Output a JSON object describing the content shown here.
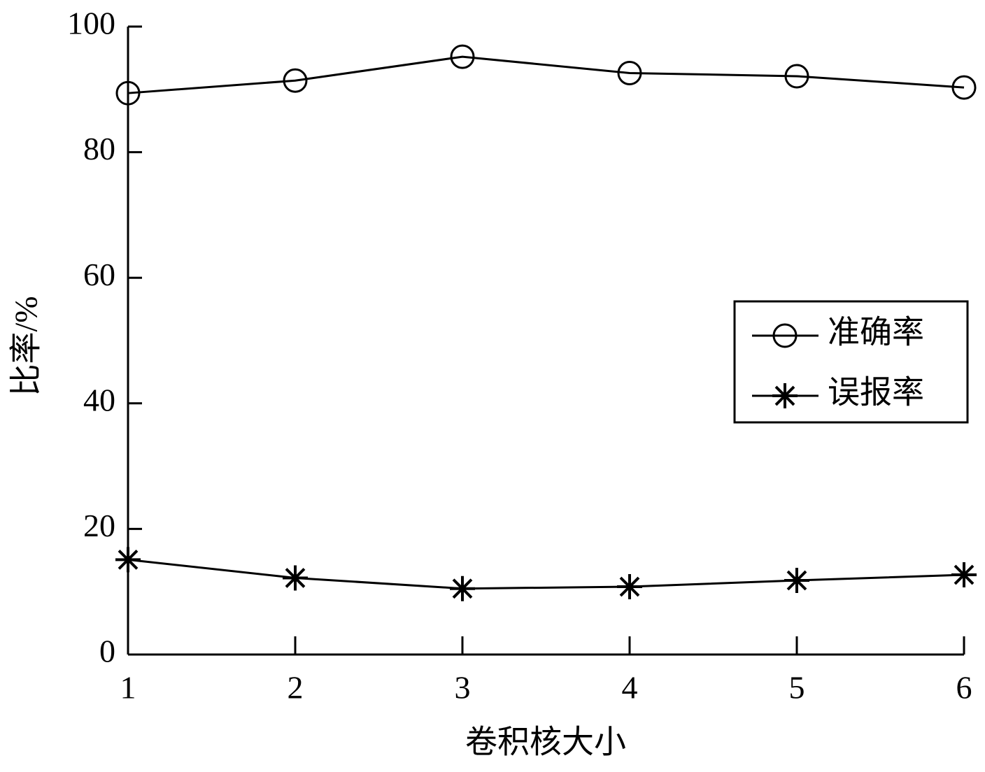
{
  "chart_data": {
    "type": "line",
    "x_label": "卷积核大小",
    "y_label": "比率/%",
    "x": [
      1,
      2,
      3,
      4,
      5,
      6
    ],
    "xlim": [
      1,
      6
    ],
    "xticks": [
      1,
      2,
      3,
      4,
      5,
      6
    ],
    "ylim": [
      0,
      100
    ],
    "yticks": [
      0,
      20,
      40,
      60,
      80,
      100
    ],
    "grid": false,
    "legend": "right",
    "series": [
      {
        "name": "准确率",
        "color": "#000000",
        "marker": "circle",
        "values": [
          89.4,
          91.4,
          95.2,
          92.6,
          92.1,
          90.3
        ]
      },
      {
        "name": "误报率",
        "color": "#000000",
        "marker": "star",
        "values": [
          15.1,
          12.2,
          10.5,
          10.8,
          11.8,
          12.7
        ]
      }
    ]
  }
}
